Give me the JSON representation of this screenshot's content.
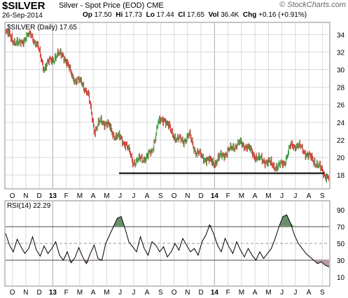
{
  "header": {
    "symbol": "$SILVER",
    "description": "Silver - Spot Price (EOD)",
    "exchange": "CME",
    "date": "26-Sep-2014",
    "open_label": "Op",
    "open": "17.50",
    "high_label": "Hi",
    "high": "17.73",
    "low_label": "Lo",
    "low": "17.44",
    "close_label": "Cl",
    "close": "17.65",
    "vol_label": "Vol",
    "vol": "36.4K",
    "chg_label": "Chg",
    "chg": "+0.16 (+0.91%)",
    "logo": "© StockCharts.com"
  },
  "colors": {
    "up": "#1a8a1a",
    "down": "#cc1111",
    "grid": "#d8d8d8",
    "support": "#000000",
    "rsi_overbought_fill": "#6b8f6b",
    "rsi_oversold_fill": "#b89aa6"
  },
  "chart_data": [
    {
      "type": "candlestick",
      "label": "$SILVER (Daily) 17.65",
      "x_tick_labels": [
        "O",
        "N",
        "D",
        "13",
        "F",
        "M",
        "A",
        "M",
        "J",
        "J",
        "A",
        "S",
        "O",
        "N",
        "D",
        "14",
        "F",
        "M",
        "A",
        "M",
        "J",
        "J",
        "A",
        "S"
      ],
      "y_ticks": [
        18,
        20,
        22,
        24,
        26,
        28,
        30,
        32,
        34
      ],
      "ylim": [
        16.5,
        35.3
      ],
      "support_level": 18.2,
      "grid": true,
      "series": [
        {
          "name": "close",
          "points": [
            [
              "O",
              34.2
            ],
            [
              "O",
              33.5
            ],
            [
              "N",
              32.8
            ],
            [
              "N",
              33.6
            ],
            [
              "D",
              34.0
            ],
            [
              "D",
              32.6
            ],
            [
              "D",
              30.2
            ],
            [
              "13",
              31.0
            ],
            [
              "13",
              31.6
            ],
            [
              "F",
              31.8
            ],
            [
              "F",
              30.0
            ],
            [
              "M",
              28.7
            ],
            [
              "M",
              28.6
            ],
            [
              "A",
              27.0
            ],
            [
              "A",
              23.0
            ],
            [
              "A",
              24.2
            ],
            [
              "M",
              23.8
            ],
            [
              "M",
              22.6
            ],
            [
              "J",
              22.2
            ],
            [
              "J",
              21.5
            ],
            [
              "J",
              19.5
            ],
            [
              "J",
              19.7
            ],
            [
              "J",
              20.0
            ],
            [
              "A",
              20.5
            ],
            [
              "A",
              23.8
            ],
            [
              "A",
              24.5
            ],
            [
              "S",
              23.0
            ],
            [
              "S",
              22.1
            ],
            [
              "O",
              21.9
            ],
            [
              "O",
              22.5
            ],
            [
              "N",
              20.6
            ],
            [
              "N",
              20.1
            ],
            [
              "D",
              19.6
            ],
            [
              "D",
              19.4
            ],
            [
              "14",
              20.2
            ],
            [
              "14",
              20.6
            ],
            [
              "F",
              21.3
            ],
            [
              "F",
              21.6
            ],
            [
              "M",
              21.3
            ],
            [
              "M",
              20.4
            ],
            [
              "A",
              19.8
            ],
            [
              "A",
              19.6
            ],
            [
              "M",
              19.2
            ],
            [
              "M",
              18.9
            ],
            [
              "J",
              19.5
            ],
            [
              "J",
              21.3
            ],
            [
              "J",
              21.4
            ],
            [
              "J",
              20.8
            ],
            [
              "A",
              20.0
            ],
            [
              "A",
              19.4
            ],
            [
              "S",
              18.4
            ],
            [
              "S",
              17.65
            ]
          ]
        }
      ]
    },
    {
      "type": "line",
      "label": "RSI(14) 22.29",
      "y_ticks": [
        10,
        30,
        50,
        70,
        90
      ],
      "ylim": [
        0,
        100
      ],
      "reference_lines": [
        30,
        50,
        70
      ],
      "series": [
        {
          "name": "RSI(14)",
          "values": [
            62,
            48,
            40,
            55,
            46,
            38,
            44,
            58,
            42,
            35,
            47,
            38,
            44,
            52,
            36,
            30,
            40,
            27,
            33,
            45,
            34,
            26,
            38,
            48,
            32,
            30,
            50,
            60,
            70,
            80,
            82,
            68,
            52,
            46,
            40,
            58,
            44,
            36,
            52,
            48,
            40,
            46,
            34,
            40,
            50,
            42,
            56,
            48,
            40,
            44,
            36,
            52,
            60,
            72,
            62,
            48,
            40,
            56,
            46,
            38,
            52,
            42,
            34,
            44,
            36,
            30,
            40,
            32,
            38,
            44,
            56,
            70,
            82,
            84,
            74,
            60,
            50,
            44,
            38,
            34,
            30,
            26,
            28,
            24,
            22
          ]
        }
      ]
    }
  ]
}
